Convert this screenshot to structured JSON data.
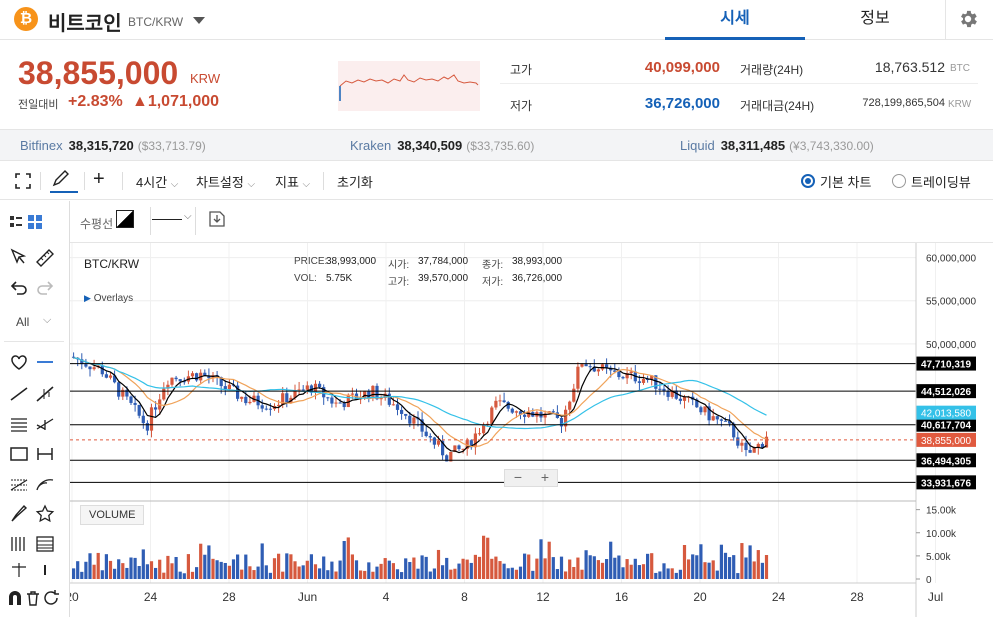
{
  "header": {
    "coin_logo": "₿",
    "coin_name": "비트코인",
    "coin_pair": "BTC/KRW",
    "tabs": [
      "시세",
      "정보"
    ]
  },
  "price": {
    "current": "38,855,000",
    "unit": "KRW",
    "change_label": "전일대비",
    "change_rate": "+2.83%",
    "change_amount": "▲1,071,000",
    "high_label": "고가",
    "high": "40,099,000",
    "low_label": "저가",
    "low": "36,726,000",
    "volume_label": "거래량(24H)",
    "volume": "18,763.512",
    "volume_unit": "BTC",
    "value_label": "거래대금(24H)",
    "value": "728,199,865,504",
    "value_unit": "KRW",
    "colors": {
      "up": "#c84a31",
      "down": "#1561b7"
    }
  },
  "exchanges": [
    {
      "name": "Bitfinex",
      "price": "38,315,720",
      "usd": "($33,713.79)"
    },
    {
      "name": "Kraken",
      "price": "38,340,509",
      "usd": "($33,735.60)"
    },
    {
      "name": "Liquid",
      "price": "38,311,485",
      "usd": "(¥3,743,330.00)"
    }
  ],
  "toolbar": {
    "interval": "4시간",
    "chart_settings": "차트설정",
    "indicators": "지표",
    "reset": "초기화",
    "basic_chart": "기본 차트",
    "tradingview": "트레이딩뷰",
    "selected_chart": "basic_chart"
  },
  "left_tools": {
    "all_label": "All"
  },
  "subbar": {
    "line_label": "수평선"
  },
  "chart": {
    "symbol": "BTC/KRW",
    "overlays": "Overlays",
    "volume_label": "VOLUME",
    "info": {
      "price_k": "PRICE:",
      "price_v": "38,993,000",
      "vol_k": "VOL:",
      "vol_v": "5.75K",
      "open_k": "시가:",
      "open_v": "37,784,000",
      "close_k": "종가:",
      "close_v": "38,993,000",
      "high_k": "고가:",
      "high_v": "39,570,000",
      "low_k": "저가:",
      "low_v": "36,726,000"
    },
    "zoom_minus": "−",
    "zoom_plus": "+"
  },
  "chart_data": {
    "type": "candlestick",
    "y_range": [
      32000000,
      61000000
    ],
    "y_ticks": [
      "60,000,000",
      "55,000,000",
      "50,000,000"
    ],
    "x_ticks": [
      "20",
      "24",
      "28",
      "Jun",
      "4",
      "8",
      "12",
      "16",
      "20",
      "24",
      "28",
      "Jul"
    ],
    "horizontal_lines": [
      {
        "label": "47,710,319",
        "value": 47710319,
        "color": "#000000"
      },
      {
        "label": "44,512,026",
        "value": 44512026,
        "color": "#000000"
      },
      {
        "label": "40,617,704",
        "value": 40617704,
        "color": "#000000"
      },
      {
        "label": "36,494,305",
        "value": 36494305,
        "color": "#000000"
      },
      {
        "label": "33,931,676",
        "value": 33931676,
        "color": "#000000"
      }
    ],
    "price_labels": [
      {
        "label": "42,013,580",
        "value": 42013580,
        "color": "#34c1e8"
      },
      {
        "label": "38,855,000",
        "value": 38855000,
        "color": "#e05a3f"
      }
    ],
    "volume_ticks": [
      "15.00k",
      "10.00k",
      "5.00k",
      "0"
    ],
    "volume_range": [
      0,
      16000
    ],
    "colors": {
      "up": "#d6593e",
      "down": "#2f5db4",
      "ma_fast": "#000000",
      "ma_mid": "#f0a35a",
      "ma_slow": "#34c1e8"
    }
  }
}
